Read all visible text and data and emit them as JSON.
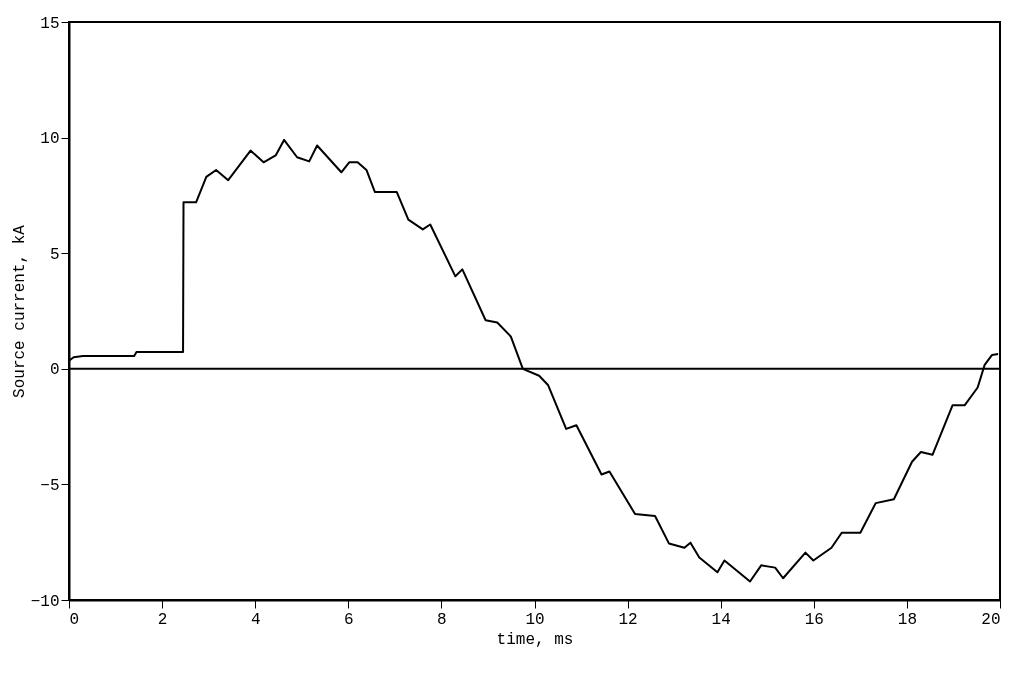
{
  "chart_data": {
    "type": "line",
    "xlabel": "time, ms",
    "ylabel": "Source current, kA",
    "xlim": [
      0,
      20
    ],
    "ylim": [
      -10,
      15
    ],
    "xticks": [
      0,
      2,
      4,
      6,
      8,
      10,
      12,
      14,
      16,
      18,
      20
    ],
    "yticks": [
      -10,
      -5,
      0,
      5,
      10,
      15
    ],
    "grid": false,
    "legend": false,
    "marker": "none",
    "line_style": "solid",
    "ref_lines": [
      {
        "axis": "y",
        "value": 0,
        "color": "#000000"
      }
    ],
    "series": [
      {
        "color": "#000000",
        "x": [
          0,
          0.1,
          0.3,
          1.4,
          1.45,
          2.45,
          2.46,
          2.73,
          2.95,
          3.16,
          3.42,
          3.9,
          4.18,
          4.44,
          4.62,
          4.9,
          5.16,
          5.33,
          5.85,
          6.02,
          6.2,
          6.39,
          6.57,
          7.04,
          7.29,
          7.6,
          7.76,
          8.3,
          8.45,
          8.95,
          9.2,
          9.49,
          9.75,
          10.1,
          10.29,
          10.68,
          10.9,
          11.44,
          11.61,
          12.16,
          12.59,
          12.89,
          13.22,
          13.35,
          13.54,
          13.93,
          14.08,
          14.63,
          14.87,
          15.17,
          15.34,
          15.82,
          15.99,
          16.38,
          16.6,
          17.0,
          17.33,
          17.72,
          18.11,
          18.3,
          18.55,
          18.98,
          19.24,
          19.52,
          19.67,
          19.83,
          19.96
        ],
        "values": [
          0.35,
          0.5,
          0.55,
          0.55,
          0.73,
          0.73,
          7.2,
          7.2,
          8.3,
          8.6,
          8.16,
          9.44,
          8.93,
          9.23,
          9.9,
          9.15,
          8.97,
          9.66,
          8.5,
          8.93,
          8.93,
          8.6,
          7.65,
          7.65,
          6.45,
          6.03,
          6.24,
          4.0,
          4.3,
          2.1,
          2.0,
          1.4,
          0,
          -0.3,
          -0.7,
          -2.6,
          -2.44,
          -4.57,
          -4.44,
          -6.28,
          -6.37,
          -7.56,
          -7.74,
          -7.52,
          -8.16,
          -8.8,
          -8.29,
          -9.2,
          -8.5,
          -8.6,
          -9.06,
          -7.95,
          -8.29,
          -7.74,
          -7.09,
          -7.09,
          -5.81,
          -5.64,
          -4.02,
          -3.6,
          -3.72,
          -1.58,
          -1.58,
          -0.81,
          0.17,
          0.6,
          0.64
        ]
      }
    ]
  }
}
